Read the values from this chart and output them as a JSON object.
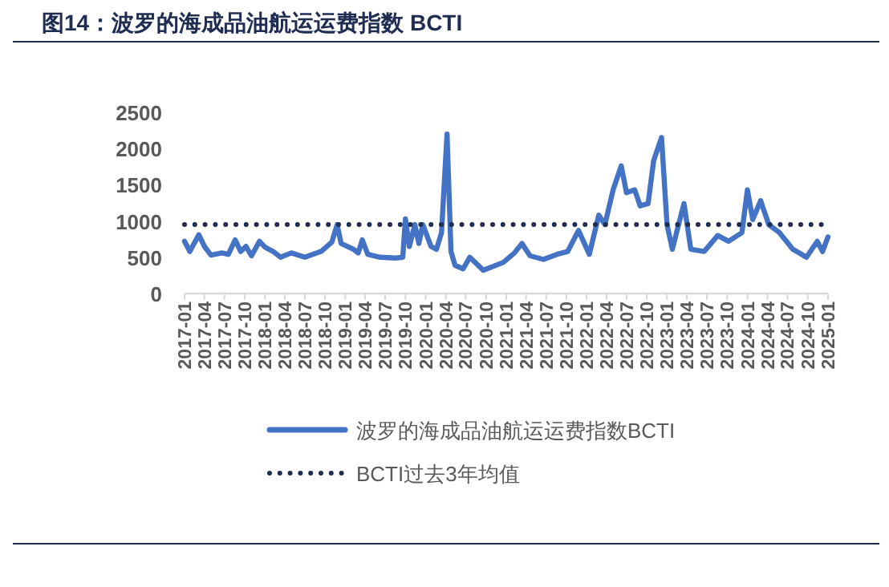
{
  "chart_data": {
    "type": "line",
    "title": "图14：波罗的海成品油航运运费指数 BCTI",
    "xlim": [
      "2017-01",
      "2025-01"
    ],
    "xticks": [
      "2017-01",
      "2017-04",
      "2017-07",
      "2017-10",
      "2018-01",
      "2018-04",
      "2018-07",
      "2018-10",
      "2019-01",
      "2019-04",
      "2019-07",
      "2019-10",
      "2020-01",
      "2020-04",
      "2020-07",
      "2020-10",
      "2021-01",
      "2021-04",
      "2021-07",
      "2021-10",
      "2022-01",
      "2022-04",
      "2022-07",
      "2022-10",
      "2023-01",
      "2023-04",
      "2023-07",
      "2023-10",
      "2024-01",
      "2024-04",
      "2024-07",
      "2024-10",
      "2025-01"
    ],
    "ylim": [
      0,
      2500
    ],
    "yticks": [
      0,
      500,
      1000,
      1500,
      2000,
      2500
    ],
    "grid": false,
    "legend": "bottom",
    "marker": "none",
    "series": [
      {
        "name": "波罗的海成品油航运运费指数BCTI",
        "color": "#4472c4",
        "line_style": "solid",
        "x": [
          "2017-01-01",
          "2017-01-25",
          "2017-03-07",
          "2017-04-01",
          "2017-05-01",
          "2017-06-19",
          "2017-07-19",
          "2017-08-19",
          "2017-09-13",
          "2017-10-07",
          "2017-11-01",
          "2017-12-07",
          "2018-01-01",
          "2018-02-07",
          "2018-03-13",
          "2018-05-01",
          "2018-07-01",
          "2018-09-13",
          "2018-11-01",
          "2018-11-25",
          "2018-12-13",
          "2019-02-07",
          "2019-03-01",
          "2019-03-19",
          "2019-04-13",
          "2019-06-07",
          "2019-08-19",
          "2019-09-19",
          "2019-10-01",
          "2019-10-19",
          "2019-11-13",
          "2019-12-01",
          "2019-12-19",
          "2020-01-25",
          "2020-02-19",
          "2020-03-13",
          "2020-04-07",
          "2020-04-25",
          "2020-05-13",
          "2020-06-19",
          "2020-07-19",
          "2020-09-19",
          "2020-12-19",
          "2021-02-07",
          "2021-03-13",
          "2021-04-19",
          "2021-06-19",
          "2021-08-19",
          "2021-10-07",
          "2021-11-25",
          "2022-01-13",
          "2022-02-25",
          "2022-03-25",
          "2022-05-01",
          "2022-06-07",
          "2022-07-01",
          "2022-08-07",
          "2022-09-01",
          "2022-10-07",
          "2022-11-01",
          "2022-12-07",
          "2023-01-01",
          "2023-01-25",
          "2023-02-19",
          "2023-03-19",
          "2023-04-19",
          "2023-06-19",
          "2023-08-19",
          "2023-10-07",
          "2023-12-07",
          "2024-01-01",
          "2024-01-25",
          "2024-03-01",
          "2024-04-07",
          "2024-05-25",
          "2024-07-25",
          "2024-09-25",
          "2024-11-13",
          "2024-12-07",
          "2025-01-01"
        ],
        "values": [
          720,
          580,
          810,
          650,
          530,
          560,
          540,
          740,
          580,
          650,
          520,
          720,
          640,
          580,
          500,
          560,
          500,
          580,
          710,
          950,
          690,
          610,
          560,
          740,
          540,
          500,
          490,
          500,
          1030,
          650,
          950,
          690,
          950,
          650,
          610,
          840,
          2200,
          580,
          390,
          340,
          500,
          320,
          430,
          560,
          690,
          520,
          470,
          540,
          580,
          870,
          540,
          1080,
          950,
          1430,
          1760,
          1390,
          1430,
          1210,
          1240,
          1830,
          2150,
          950,
          610,
          910,
          1240,
          610,
          580,
          800,
          720,
          840,
          1430,
          1020,
          1280,
          950,
          840,
          610,
          500,
          720,
          580,
          780
        ]
      },
      {
        "name": "BCTI过去3年均值",
        "color": "#1f2d52",
        "line_style": "dotted",
        "x": [
          "2017-01-01",
          "2025-01-01"
        ],
        "values": [
          950,
          950
        ]
      }
    ]
  }
}
